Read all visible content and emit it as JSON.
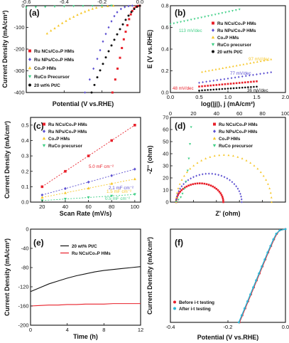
{
  "colors": {
    "red": "#e8202a",
    "purple": "#5b4fd0",
    "yellow": "#f6c72a",
    "teal": "#3fcf86",
    "black": "#111111",
    "cyan": "#2db7d6"
  },
  "chart_data": [
    {
      "panel": "(a)",
      "type": "scatter",
      "xlabel": "Potential (V vs.RHE)",
      "ylabel": "Current Density (mA/cm²)",
      "xlim": [
        -0.6,
        0.0
      ],
      "ylim": [
        -400,
        0
      ],
      "xticks": [
        "-0.6",
        "-0.4",
        "-0.2",
        "0.0"
      ],
      "yticks": [
        "0",
        "-100",
        "-200",
        "-300",
        "-400"
      ],
      "legend_position": "bottom-left",
      "series": [
        {
          "name": "Ru NCs/Co₂P HMs",
          "color": "red",
          "marker": "square",
          "x": [
            -0.145,
            -0.13,
            -0.118,
            -0.105,
            -0.095,
            -0.085,
            -0.075,
            -0.066,
            -0.057,
            -0.048,
            -0.04,
            -0.03,
            -0.02,
            -0.01,
            0.0
          ],
          "y": [
            -400,
            -340,
            -290,
            -240,
            -195,
            -155,
            -120,
            -90,
            -62,
            -40,
            -24,
            -12,
            -5,
            -1,
            0
          ]
        },
        {
          "name": "Ru NPs/Co₂P HMs",
          "color": "purple",
          "marker": "diamond",
          "x": [
            -0.29,
            -0.265,
            -0.245,
            -0.225,
            -0.21,
            -0.195,
            -0.18,
            -0.165,
            -0.15,
            -0.135,
            -0.12,
            -0.1,
            -0.08,
            -0.06,
            -0.04
          ],
          "y": [
            -400,
            -340,
            -290,
            -245,
            -205,
            -165,
            -130,
            -100,
            -72,
            -48,
            -30,
            -15,
            -6,
            -2,
            0
          ]
        },
        {
          "name": "Co₂P HMs",
          "color": "yellow",
          "marker": "triangle-up",
          "x": [
            -0.49,
            -0.47,
            -0.45,
            -0.43,
            -0.41,
            -0.39,
            -0.37,
            -0.35,
            -0.33,
            -0.31,
            -0.29,
            -0.27,
            -0.25,
            -0.23,
            -0.2,
            -0.17,
            -0.14
          ],
          "y": [
            -128,
            -115,
            -104,
            -92,
            -80,
            -70,
            -60,
            -51,
            -42,
            -34,
            -27,
            -20,
            -14,
            -9,
            -5,
            -2,
            0
          ]
        },
        {
          "name": "RuCo Precursor",
          "color": "teal",
          "marker": "triangle-down",
          "x": [
            -0.6,
            -0.55,
            -0.5,
            -0.45,
            -0.4,
            -0.35,
            -0.3,
            -0.25,
            -0.2,
            -0.15
          ],
          "y": [
            -9,
            -7,
            -5.5,
            -4,
            -3,
            -2,
            -1.4,
            -1,
            -0.5,
            0
          ]
        },
        {
          "name": "20 wt% Pt/C",
          "color": "black",
          "marker": "circle",
          "x": [
            -0.255,
            -0.24,
            -0.225,
            -0.21,
            -0.195,
            -0.18,
            -0.165,
            -0.15,
            -0.135,
            -0.12,
            -0.105,
            -0.09,
            -0.075,
            -0.06,
            -0.045,
            -0.03,
            -0.015,
            0.0
          ],
          "y": [
            -400,
            -365,
            -330,
            -298,
            -268,
            -238,
            -210,
            -183,
            -157,
            -132,
            -108,
            -86,
            -65,
            -46,
            -29,
            -15,
            -5,
            0
          ]
        }
      ]
    },
    {
      "panel": "(b)",
      "type": "scatter",
      "xlabel": "log(|j|), j (mA/cm²)",
      "ylabel": "E (V vs.RHE)",
      "xlim": [
        0.0,
        2.0
      ],
      "ylim": [
        0.0,
        0.8
      ],
      "xticks": [
        "0.0",
        "0.5",
        "1.0",
        "1.5",
        "2.0"
      ],
      "yticks": [
        "0.0",
        "0.2",
        "0.4",
        "0.6",
        "0.8"
      ],
      "legend_position": "right",
      "annotations": [
        {
          "text": "113 mV/dec",
          "color": "teal"
        },
        {
          "text": "97 mV/dec",
          "color": "yellow"
        },
        {
          "text": "77 mV/dec",
          "color": "purple"
        },
        {
          "text": "48 mV/dec",
          "color": "red"
        },
        {
          "text": "36 mV/dec",
          "color": "black"
        }
      ],
      "series": [
        {
          "name": "Ru NCs/Co₂P HMs",
          "color": "red",
          "marker": "square",
          "x0": 0.5,
          "x1": 1.5,
          "y0": 0.055,
          "slope": 0.048
        },
        {
          "name": "Ru NPs/Co₂P HMs",
          "color": "purple",
          "marker": "diamond",
          "x0": 0.5,
          "x1": 1.75,
          "y0": 0.09,
          "slope": 0.077
        },
        {
          "name": "Co₂P HMs",
          "color": "yellow",
          "marker": "triangle-up",
          "x0": 0.55,
          "x1": 1.75,
          "y0": 0.19,
          "slope": 0.097
        },
        {
          "name": "RuCo precursor",
          "color": "teal",
          "marker": "triangle-down",
          "x0": 0.0,
          "x1": 1.2,
          "y0": 0.63,
          "slope": 0.113
        },
        {
          "name": "20 wt% Pt/C",
          "color": "black",
          "marker": "circle",
          "x0": 0.5,
          "x1": 1.5,
          "y0": 0.018,
          "slope": 0.036
        }
      ]
    },
    {
      "panel": "(c)",
      "type": "scatter",
      "xlabel": "Scan Rate (mV/s)",
      "ylabel": "Current Density (mA/cm²)",
      "xlim": [
        10,
        105
      ],
      "ylim": [
        0.0,
        0.55
      ],
      "xticks": [
        "20",
        "40",
        "60",
        "80",
        "100"
      ],
      "yticks": [
        "0.0",
        "0.1",
        "0.2",
        "0.3",
        "0.4",
        "0.5"
      ],
      "legend_position": "top-left",
      "annotations": [
        {
          "text": "5.0 mF cm⁻²",
          "color": "red"
        },
        {
          "text": "2.1 mF cm⁻²",
          "color": "purple"
        },
        {
          "text": "1.5 mF cm⁻²",
          "color": "yellow"
        },
        {
          "text": "0.5 mF cm⁻²",
          "color": "teal"
        }
      ],
      "x": [
        20,
        40,
        60,
        80,
        100
      ],
      "series": [
        {
          "name": "Ru NCs/Co₂P HMs",
          "color": "red",
          "marker": "square",
          "values": [
            0.1,
            0.2,
            0.3,
            0.4,
            0.5
          ]
        },
        {
          "name": "Ru NPs/Co₂P HMs",
          "color": "purple",
          "marker": "diamond",
          "values": [
            0.046,
            0.088,
            0.13,
            0.172,
            0.214
          ]
        },
        {
          "name": "Co₂P HMs",
          "color": "yellow",
          "marker": "triangle-up",
          "values": [
            0.03,
            0.06,
            0.09,
            0.12,
            0.15
          ]
        },
        {
          "name": "RuCo precursor",
          "color": "teal",
          "marker": "triangle-down",
          "values": [
            0.01,
            0.02,
            0.03,
            0.04,
            0.05
          ]
        }
      ]
    },
    {
      "panel": "(d)",
      "type": "scatter",
      "xlabel": "Z' (ohm)",
      "ylabel": "-Z'' (ohm)",
      "xlim": [
        0,
        100
      ],
      "ylim": [
        0,
        70
      ],
      "xticks": [
        "0",
        "20",
        "40",
        "60",
        "80",
        "100"
      ],
      "yticks": [
        "0",
        "10",
        "20",
        "30",
        "40",
        "50",
        "60",
        "70"
      ],
      "legend_position": "top-right",
      "series": [
        {
          "name": "Ru NCs/Co₂P HMs",
          "color": "red",
          "marker": "square",
          "kind": "arc",
          "r0": 5,
          "r1": 46,
          "peak": 15.5
        },
        {
          "name": "Ru NPs/Co₂P HMs",
          "color": "purple",
          "marker": "diamond",
          "kind": "arc",
          "r0": 5,
          "r1": 62,
          "peak": 23.5
        },
        {
          "name": "Co₂P HMs",
          "color": "yellow",
          "marker": "triangle-up",
          "kind": "arc",
          "r0": 5,
          "r1": 88,
          "peak": 39
        },
        {
          "name": "RuCo precursor",
          "color": "teal",
          "marker": "triangle-down",
          "kind": "spike",
          "x": [
            5,
            7,
            9,
            10.5,
            12,
            13.5,
            15,
            16,
            17,
            18
          ],
          "y": [
            0.5,
            2,
            4,
            7,
            11,
            17,
            26,
            36,
            48,
            62
          ]
        }
      ]
    },
    {
      "panel": "(e)",
      "type": "line",
      "xlabel": "Time (h)",
      "ylabel": "Current Density (mA/cm²)",
      "xlim": [
        0,
        12
      ],
      "ylim": [
        -200,
        0
      ],
      "xticks": [
        "0",
        "4",
        "8",
        "12"
      ],
      "yticks": [
        "0",
        "-40",
        "-80",
        "-120",
        "-160",
        "-200"
      ],
      "legend_position": "top-right",
      "series": [
        {
          "name": "20 wt% Pt/C",
          "color": "black",
          "x": [
            0,
            1,
            2,
            3,
            4,
            5,
            6,
            7,
            8,
            9,
            10,
            11,
            12
          ],
          "y": [
            -130,
            -122,
            -114,
            -108,
            -102,
            -97,
            -93,
            -89,
            -86,
            -84,
            -82,
            -80,
            -78
          ]
        },
        {
          "name": "Ru NCs/Co₂P HMs",
          "color": "red",
          "x": [
            0,
            1,
            2,
            3,
            4,
            5,
            6,
            7,
            8,
            9,
            10,
            11,
            12
          ],
          "y": [
            -160,
            -159,
            -158,
            -158,
            -157,
            -157,
            -156,
            -156,
            -156,
            -155,
            -155,
            -155,
            -155
          ]
        }
      ]
    },
    {
      "panel": "(f)",
      "type": "scatter",
      "xlabel": "Potential (V vs.RHE)",
      "ylabel": "Current Density (mA/cm²)",
      "xlim": [
        -0.4,
        0.0
      ],
      "ylim": [
        -400,
        0
      ],
      "xticks": [
        "-0.4",
        "-0.2",
        "0.0"
      ],
      "legend_position": "bottom-left",
      "series": [
        {
          "name": "Before i-t testing",
          "color": "red",
          "marker": "circle",
          "x": [
            -0.16,
            -0.15,
            -0.14,
            -0.13,
            -0.12,
            -0.11,
            -0.1,
            -0.09,
            -0.08,
            -0.07,
            -0.06,
            -0.05,
            -0.04,
            -0.03,
            -0.02,
            0.0
          ],
          "y": [
            -400,
            -370,
            -340,
            -310,
            -280,
            -250,
            -220,
            -190,
            -160,
            -130,
            -100,
            -72,
            -44,
            -20,
            -5,
            0
          ]
        },
        {
          "name": "After i-t testing",
          "color": "cyan",
          "marker": "circle",
          "x": [
            -0.162,
            -0.152,
            -0.142,
            -0.132,
            -0.122,
            -0.112,
            -0.102,
            -0.092,
            -0.082,
            -0.072,
            -0.062,
            -0.052,
            -0.042,
            -0.032,
            -0.02,
            0.0
          ],
          "y": [
            -400,
            -370,
            -340,
            -310,
            -280,
            -250,
            -220,
            -190,
            -160,
            -130,
            -100,
            -72,
            -44,
            -20,
            -5,
            0
          ]
        }
      ]
    }
  ]
}
